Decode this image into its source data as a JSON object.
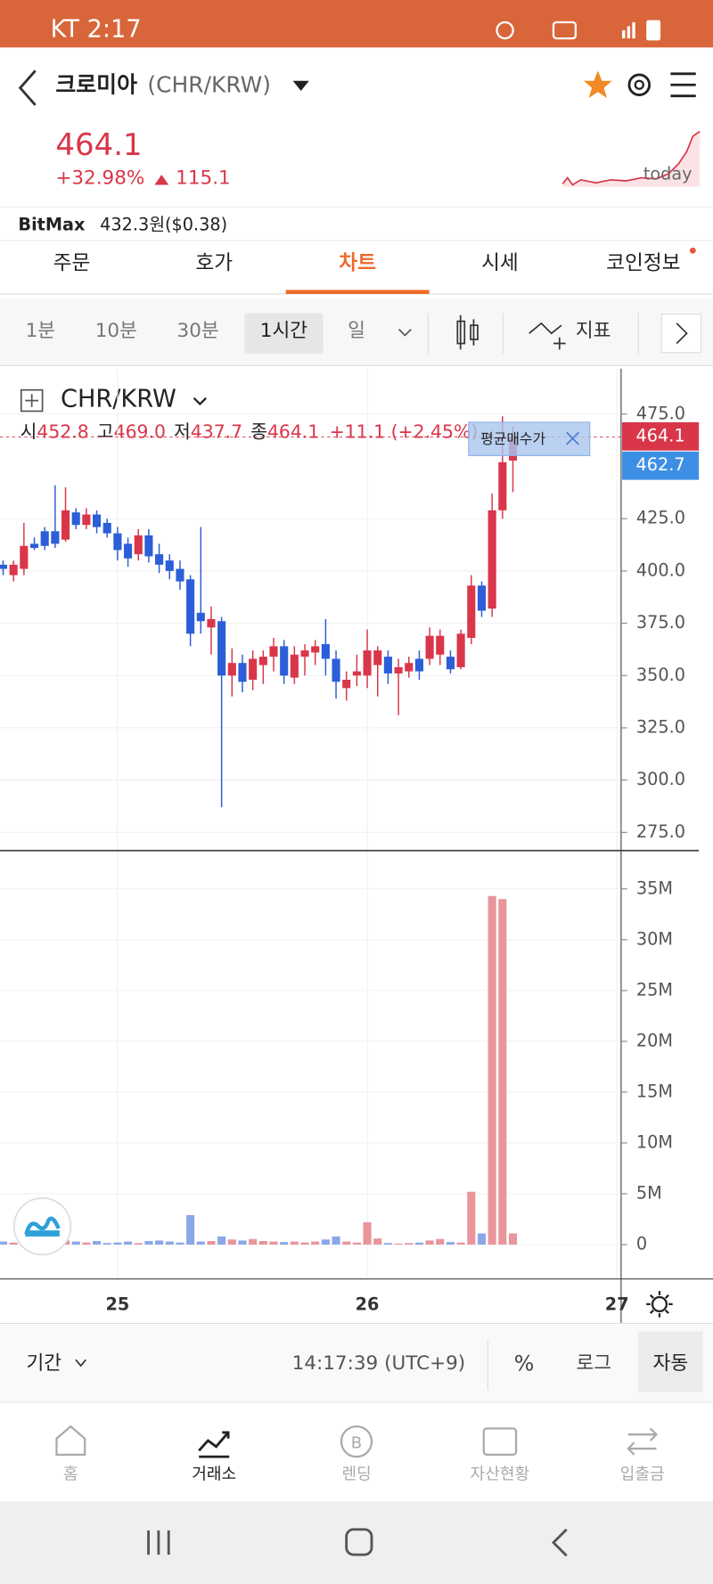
{
  "status_bar": {
    "time": "KT 2:17"
  },
  "header": {
    "title": "크로미아",
    "pair": "(CHR/KRW)"
  },
  "price": {
    "last": "464.1",
    "change_pct": "+32.98%",
    "change": "115.1",
    "spark_label": "today"
  },
  "reference": {
    "exchange": "BitMax",
    "price": "432.3원($0.38)"
  },
  "tabs": {
    "items": [
      "주문",
      "호가",
      "차트",
      "시세",
      "코인정보"
    ],
    "active": 2
  },
  "intervals": {
    "items": [
      "1분",
      "10분",
      "30분",
      "1시간",
      "일"
    ],
    "active": 3,
    "indicator": "지표"
  },
  "chart_header": {
    "symbol": "CHR/KRW",
    "ohlc": [
      {
        "label": "시",
        "value": "452.8"
      },
      {
        "label": "고",
        "value": "469.0"
      },
      {
        "label": "저",
        "value": "437.7"
      },
      {
        "label": "종",
        "value": "464.1"
      }
    ],
    "change": "+11.1 (+2.45%)",
    "avg_label": "평균매수가",
    "last_tag": "464.1",
    "avg_tag": "462.7"
  },
  "chart_data": [
    {
      "type": "candlestick",
      "categories": [
        null,
        null,
        null,
        null,
        null,
        null,
        null,
        null,
        null,
        null,
        null,
        null,
        null,
        null,
        null,
        null,
        null,
        null,
        null,
        null,
        null,
        null,
        null,
        null,
        null,
        null,
        null,
        null,
        null,
        null,
        null,
        null,
        null,
        null,
        null,
        null,
        null,
        null,
        null,
        null,
        null,
        null,
        null,
        null,
        null,
        null,
        null,
        null,
        null,
        null
      ],
      "open": [
        403,
        398,
        401,
        413,
        419,
        419,
        415,
        428,
        422,
        427,
        423,
        418,
        413,
        408,
        417,
        408,
        405,
        401,
        396,
        380,
        373,
        376,
        350,
        356,
        348,
        355,
        359,
        364,
        349,
        359,
        361,
        365,
        358,
        344,
        350,
        350,
        355,
        359,
        351,
        352,
        358,
        358,
        360,
        359,
        354,
        368,
        393,
        382,
        429,
        452.8
      ],
      "high": [
        405,
        405,
        423,
        416,
        421,
        441,
        440,
        430,
        430,
        429,
        425,
        421,
        416,
        420,
        420,
        413,
        408,
        405,
        398,
        421,
        383,
        378,
        363,
        360,
        362,
        362,
        368,
        367,
        364,
        365,
        367,
        377,
        362,
        352,
        360,
        372,
        364,
        362,
        358,
        359,
        362,
        373,
        372,
        362,
        372,
        398,
        395,
        437,
        474,
        469
      ],
      "low": [
        398,
        395,
        398,
        410,
        410,
        411,
        414,
        420,
        420,
        418,
        416,
        405,
        402,
        405,
        404,
        399,
        396,
        391,
        364,
        370,
        360,
        287,
        340,
        342,
        343,
        346,
        352,
        346,
        346,
        350,
        355,
        350,
        339,
        338,
        345,
        344,
        340,
        346,
        331,
        349,
        348,
        355,
        355,
        351,
        353,
        365,
        378,
        378,
        425,
        437.7
      ],
      "close": [
        401,
        403,
        412,
        411,
        412,
        413,
        429,
        422,
        427,
        421,
        418,
        410,
        406,
        417,
        407,
        403,
        400,
        395,
        370,
        376,
        377,
        350,
        356,
        347,
        358,
        359,
        364,
        350,
        360,
        362,
        364,
        358,
        347,
        348,
        352,
        362,
        362,
        351,
        354,
        356,
        352,
        369,
        369,
        353,
        370,
        393,
        381,
        429,
        452,
        464.1
      ],
      "up_color": "#d9364a",
      "down_color": "#2b5ed8",
      "xlim": [
        -0.3,
        59.4
      ],
      "xticks": [
        {
          "value": 11,
          "label": "25"
        },
        {
          "value": 35,
          "label": "26"
        },
        {
          "value": 59,
          "label": "27"
        }
      ],
      "ylim": [
        266.3,
        496.7
      ],
      "yticks": [
        {
          "value": 275,
          "label": "275.0"
        },
        {
          "value": 300,
          "label": "300.0"
        },
        {
          "value": 325,
          "label": "325.0"
        },
        {
          "value": 350,
          "label": "350.0"
        },
        {
          "value": 375,
          "label": "375.0"
        },
        {
          "value": 400,
          "label": "400.0"
        },
        {
          "value": 425,
          "label": "425.0"
        },
        {
          "value": 475,
          "label": "475.0"
        }
      ],
      "grid": true
    },
    {
      "type": "bar",
      "values": [
        300000,
        200000,
        150000,
        100000,
        300000,
        250000,
        400000,
        300000,
        200000,
        350000,
        150000,
        200000,
        300000,
        150000,
        350000,
        400000,
        300000,
        200000,
        2900000,
        300000,
        350000,
        800000,
        500000,
        400000,
        550000,
        350000,
        300000,
        250000,
        300000,
        200000,
        300000,
        500000,
        800000,
        300000,
        200000,
        2200000,
        600000,
        150000,
        100000,
        150000,
        200000,
        400000,
        550000,
        250000,
        200000,
        5200000,
        1100000,
        34300000,
        34000000,
        1100000
      ],
      "up_color": "#e8959c",
      "down_color": "#8aa8e8",
      "ylim": [
        -3280000,
        38670000
      ],
      "yticks": [
        0,
        {
          "value": 5000000,
          "label": "5M"
        },
        {
          "value": 10000000,
          "label": "10M"
        },
        {
          "value": 15000000,
          "label": "15M"
        },
        {
          "value": 20000000,
          "label": "20M"
        },
        {
          "value": 25000000,
          "label": "25M"
        },
        {
          "value": 30000000,
          "label": "30M"
        },
        {
          "value": 35000000,
          "label": "35M"
        }
      ],
      "grid": true
    }
  ],
  "bottom_bar": {
    "period": "기간",
    "time": "14:17:39 (UTC+9)",
    "percent": "%",
    "log": "로그",
    "auto": "자동"
  },
  "nav": {
    "items": [
      "홈",
      "거래소",
      "렌딩",
      "자산현황",
      "입출금"
    ],
    "active": 1
  }
}
